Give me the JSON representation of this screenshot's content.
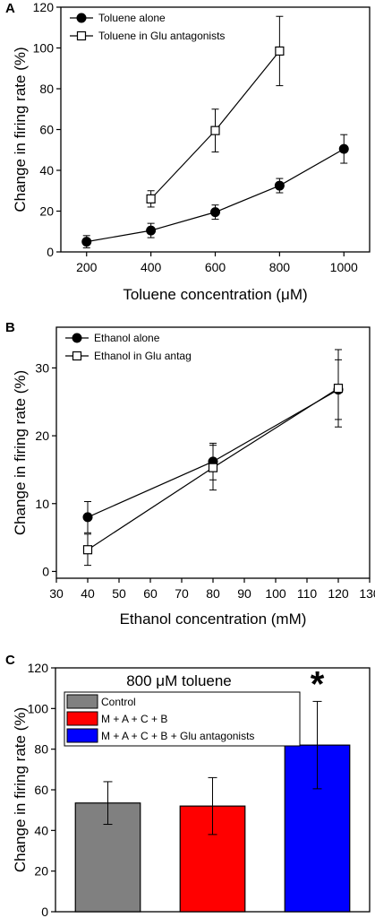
{
  "chart_data": [
    {
      "panel": "A",
      "type": "line",
      "xlabel": "Toluene concentration (μM)",
      "ylabel": "Change in firing rate (%)",
      "xlim": [
        120,
        1080
      ],
      "ylim": [
        0,
        120
      ],
      "x_ticks": [
        200,
        400,
        600,
        800,
        1000
      ],
      "y_ticks": [
        0,
        20,
        40,
        60,
        80,
        100,
        120
      ],
      "legend_position": "top-left",
      "series": [
        {
          "name": "Toluene alone",
          "marker": "filled-circle",
          "x": [
            200,
            400,
            600,
            800,
            1000
          ],
          "y": [
            5,
            10.5,
            19.5,
            32.5,
            50.5
          ],
          "err": [
            3,
            3.5,
            3.5,
            3.5,
            7
          ]
        },
        {
          "name": "Toluene in Glu antagonists",
          "marker": "open-square",
          "x": [
            400,
            600,
            800
          ],
          "y": [
            26,
            59.5,
            98.5
          ],
          "err": [
            4,
            10.5,
            17
          ]
        }
      ]
    },
    {
      "panel": "B",
      "type": "line",
      "xlabel": "Ethanol concentration (mM)",
      "ylabel": "Change in firing rate (%)",
      "xlim": [
        30,
        130
      ],
      "ylim": [
        -1,
        36
      ],
      "x_ticks": [
        30,
        40,
        50,
        60,
        70,
        80,
        90,
        100,
        110,
        120,
        130
      ],
      "y_ticks": [
        0,
        10,
        20,
        30
      ],
      "legend_position": "top-left",
      "series": [
        {
          "name": "Ethanol alone",
          "marker": "filled-circle",
          "x": [
            40,
            80,
            120
          ],
          "y": [
            8,
            16.2,
            26.8
          ],
          "err": [
            2.3,
            2.7,
            4.4
          ]
        },
        {
          "name": "Ethanol in Glu antag",
          "marker": "open-square",
          "x": [
            40,
            80,
            120
          ],
          "y": [
            3.2,
            15.3,
            27
          ],
          "err": [
            2.3,
            3.3,
            5.7
          ]
        }
      ]
    },
    {
      "panel": "C",
      "type": "bar",
      "subtitle": "800 μM toluene",
      "ylabel": "Change in firing rate (%)",
      "ylim": [
        0,
        120
      ],
      "y_ticks": [
        0,
        20,
        40,
        60,
        80,
        100,
        120
      ],
      "legend_position": "top-center",
      "categories": [
        "Control",
        "M + A + C + B",
        "M + A + C + B + Glu antagonists"
      ],
      "values": [
        53.5,
        52,
        82
      ],
      "err": [
        10.5,
        14,
        21.5
      ],
      "colors": [
        "#808080",
        "#ff0000",
        "#0000ff"
      ],
      "significance": [
        "",
        "",
        "*"
      ]
    }
  ]
}
